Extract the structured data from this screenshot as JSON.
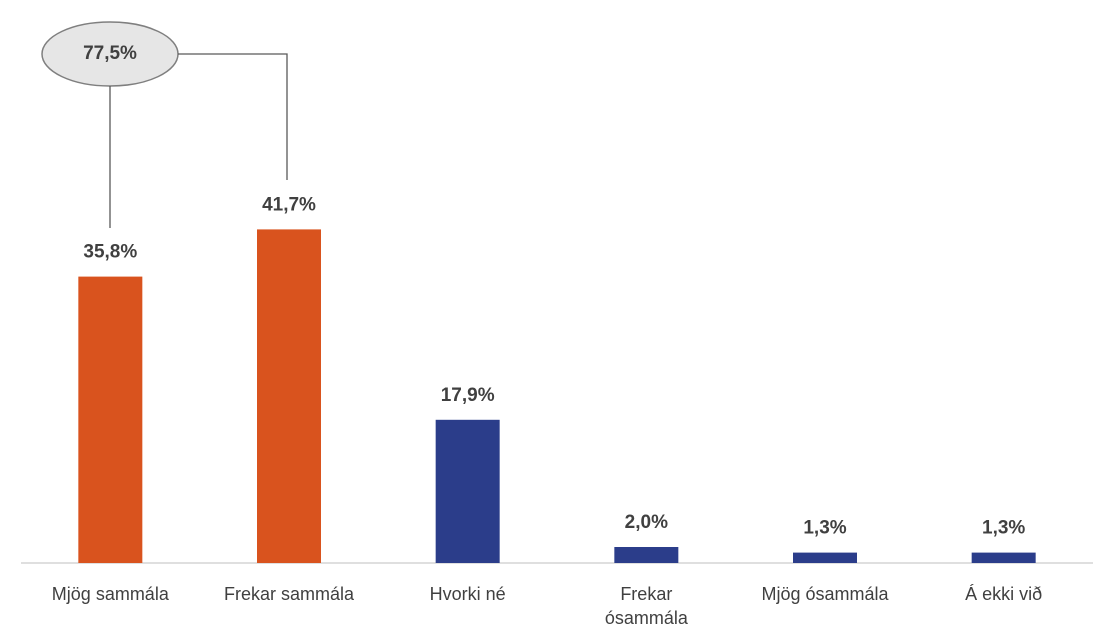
{
  "chart_data": {
    "type": "bar",
    "categories": [
      "Mjög sammála",
      "Frekar sammála",
      "Hvorki né",
      "Frekar ósammála",
      "Mjög ósammála",
      "Á ekki við"
    ],
    "values": [
      35.8,
      41.7,
      17.9,
      2.0,
      1.3,
      1.3
    ],
    "value_labels": [
      "35,8%",
      "41,7%",
      "17,9%",
      "2,0%",
      "1,3%",
      "1,3%"
    ],
    "colors": [
      "#d9531e",
      "#d9531e",
      "#2b3d8a",
      "#2b3d8a",
      "#2b3d8a",
      "#2b3d8a"
    ],
    "ylim": [
      0,
      50
    ],
    "annotation": "77,5%"
  }
}
